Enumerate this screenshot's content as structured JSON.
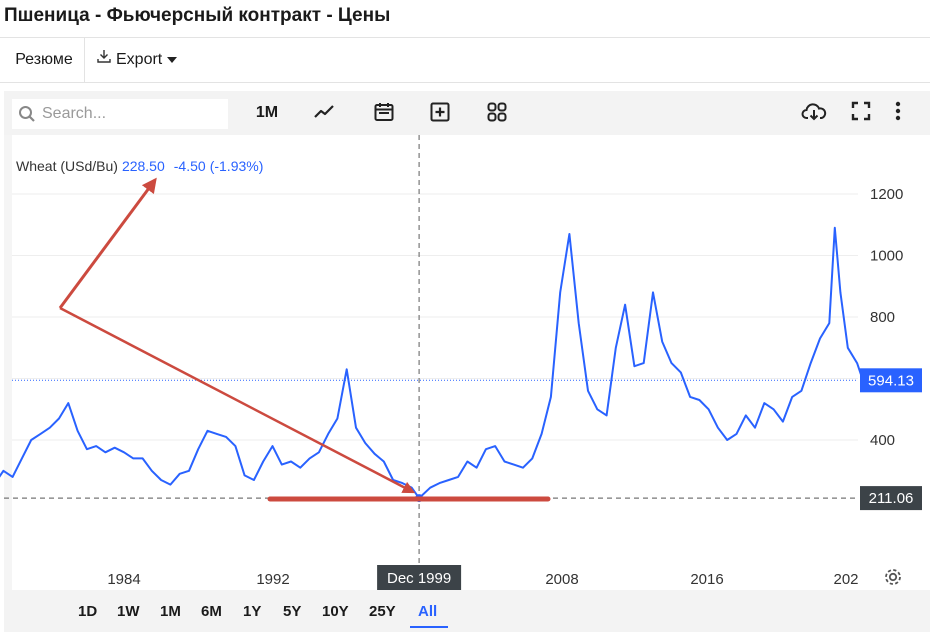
{
  "page": {
    "title": "Пшеница - Фьючерсный контракт - Цены"
  },
  "tabs": {
    "summary": "Резюме",
    "export": "Export"
  },
  "toolbar": {
    "search_placeholder": "Search...",
    "interval": "1M"
  },
  "legend": {
    "name": "Wheat (USd/Bu)",
    "price": "228.50",
    "change": "-4.50",
    "change_pct": "(-1.93%)"
  },
  "ranges": [
    "1D",
    "1W",
    "1M",
    "6M",
    "1Y",
    "5Y",
    "10Y",
    "25Y",
    "All"
  ],
  "active_range": "All",
  "colors": {
    "line": "#2962ff",
    "arrow": "#cc4a3f",
    "axis_box": "#3c4348"
  },
  "chart_data": {
    "type": "line",
    "series": [
      {
        "name": "Wheat (USd/Bu)",
        "points": [
          [
            1977.0,
            255
          ],
          [
            1977.5,
            300
          ],
          [
            1978.0,
            280
          ],
          [
            1978.5,
            340
          ],
          [
            1979.0,
            400
          ],
          [
            1979.5,
            420
          ],
          [
            1980.0,
            440
          ],
          [
            1980.5,
            470
          ],
          [
            1981.0,
            520
          ],
          [
            1981.5,
            430
          ],
          [
            1982.0,
            370
          ],
          [
            1982.5,
            380
          ],
          [
            1983.0,
            360
          ],
          [
            1983.5,
            375
          ],
          [
            1984.0,
            360
          ],
          [
            1984.5,
            340
          ],
          [
            1985.0,
            340
          ],
          [
            1985.5,
            300
          ],
          [
            1986.0,
            270
          ],
          [
            1986.5,
            255
          ],
          [
            1987.0,
            290
          ],
          [
            1987.5,
            300
          ],
          [
            1988.0,
            370
          ],
          [
            1988.5,
            430
          ],
          [
            1989.0,
            420
          ],
          [
            1989.5,
            410
          ],
          [
            1990.0,
            380
          ],
          [
            1990.5,
            285
          ],
          [
            1991.0,
            270
          ],
          [
            1991.5,
            330
          ],
          [
            1992.0,
            380
          ],
          [
            1992.5,
            320
          ],
          [
            1993.0,
            330
          ],
          [
            1993.5,
            310
          ],
          [
            1994.0,
            340
          ],
          [
            1994.5,
            360
          ],
          [
            1995.0,
            420
          ],
          [
            1995.5,
            470
          ],
          [
            1996.0,
            630
          ],
          [
            1996.5,
            440
          ],
          [
            1997.0,
            390
          ],
          [
            1997.5,
            355
          ],
          [
            1998.0,
            330
          ],
          [
            1998.5,
            270
          ],
          [
            1999.0,
            260
          ],
          [
            1999.5,
            245
          ],
          [
            1999.9,
            211.06
          ],
          [
            2000.5,
            245
          ],
          [
            2001.0,
            260
          ],
          [
            2001.5,
            270
          ],
          [
            2002.0,
            280
          ],
          [
            2002.5,
            330
          ],
          [
            2003.0,
            310
          ],
          [
            2003.5,
            370
          ],
          [
            2004.0,
            380
          ],
          [
            2004.5,
            330
          ],
          [
            2005.0,
            320
          ],
          [
            2005.5,
            310
          ],
          [
            2006.0,
            340
          ],
          [
            2006.5,
            420
          ],
          [
            2007.0,
            540
          ],
          [
            2007.5,
            880
          ],
          [
            2008.0,
            1070
          ],
          [
            2008.5,
            780
          ],
          [
            2009.0,
            560
          ],
          [
            2009.5,
            500
          ],
          [
            2010.0,
            480
          ],
          [
            2010.5,
            700
          ],
          [
            2011.0,
            840
          ],
          [
            2011.5,
            640
          ],
          [
            2012.0,
            650
          ],
          [
            2012.5,
            880
          ],
          [
            2013.0,
            720
          ],
          [
            2013.5,
            650
          ],
          [
            2014.0,
            620
          ],
          [
            2014.5,
            540
          ],
          [
            2015.0,
            530
          ],
          [
            2015.5,
            500
          ],
          [
            2016.0,
            440
          ],
          [
            2016.5,
            400
          ],
          [
            2017.0,
            420
          ],
          [
            2017.5,
            480
          ],
          [
            2018.0,
            440
          ],
          [
            2018.5,
            520
          ],
          [
            2019.0,
            500
          ],
          [
            2019.5,
            460
          ],
          [
            2020.0,
            540
          ],
          [
            2020.5,
            560
          ],
          [
            2021.0,
            650
          ],
          [
            2021.5,
            730
          ],
          [
            2022.0,
            780
          ],
          [
            2022.3,
            1090
          ],
          [
            2022.6,
            880
          ],
          [
            2023.0,
            700
          ],
          [
            2023.5,
            650
          ],
          [
            2024.0,
            560
          ],
          [
            2024.3,
            594.13
          ]
        ]
      }
    ],
    "x_ticks": [
      "1984",
      "1992",
      "2008",
      "2016",
      "202"
    ],
    "y_ticks": [
      400,
      800,
      1000,
      1200
    ],
    "last_price": "594.13",
    "crosshair": {
      "x_label": "Dec 1999",
      "y_label": "211.06"
    }
  }
}
